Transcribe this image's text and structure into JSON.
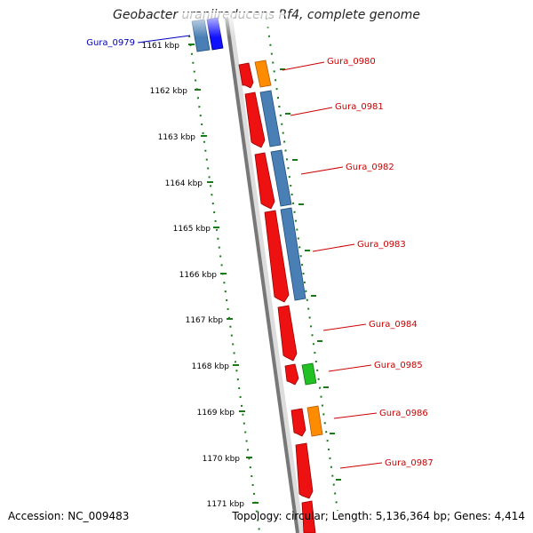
{
  "title": "Geobacter uraniireducens Rf4, complete genome",
  "footer": {
    "accession": "Accession: NC_009483",
    "summary": "Topology: circular; Length: 5,136,364 bp; Genes: 4,414"
  },
  "colors": {
    "backbone": "#7a7a7a",
    "tick": "#1a7a1a",
    "label_red": "#cc0000",
    "label_blue": "#0000bb",
    "gene_red": "#ee1111",
    "gene_orange": "#ff8c00",
    "gene_steel": "#4a7fb5",
    "gene_blue": "#1010ff",
    "gene_green": "#22c022"
  },
  "ruler": [
    {
      "label": "1161 kbp"
    },
    {
      "label": "1162 kbp"
    },
    {
      "label": "1163 kbp"
    },
    {
      "label": "1164 kbp"
    },
    {
      "label": "1165 kbp"
    },
    {
      "label": "1166 kbp"
    },
    {
      "label": "1167 kbp"
    },
    {
      "label": "1168 kbp"
    },
    {
      "label": "1169 kbp"
    },
    {
      "label": "1170 kbp"
    },
    {
      "label": "1171 kbp"
    }
  ],
  "gene_labels": [
    {
      "name": "Gura_0979",
      "color": "blue"
    },
    {
      "name": "Gura_0980",
      "color": "red"
    },
    {
      "name": "Gura_0981",
      "color": "red"
    },
    {
      "name": "Gura_0982",
      "color": "red"
    },
    {
      "name": "Gura_0983",
      "color": "red"
    },
    {
      "name": "Gura_0984",
      "color": "red"
    },
    {
      "name": "Gura_0985",
      "color": "red"
    },
    {
      "name": "Gura_0986",
      "color": "red"
    },
    {
      "name": "Gura_0987",
      "color": "red"
    }
  ]
}
